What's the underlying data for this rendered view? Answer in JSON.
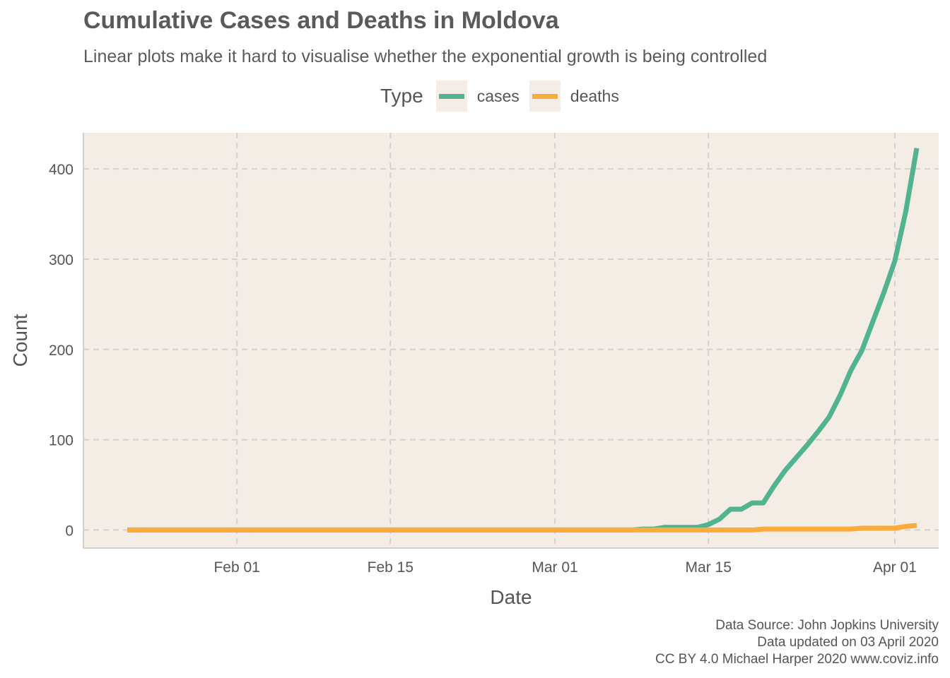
{
  "title": "Cumulative Cases and Deaths in Moldova",
  "subtitle": "Linear plots make it hard to visualise whether the exponential growth is being controlled",
  "legend": {
    "title": "Type",
    "items": [
      {
        "label": "cases",
        "color": "#52b391"
      },
      {
        "label": "deaths",
        "color": "#fbaa3c"
      }
    ]
  },
  "caption": {
    "line1": "Data Source: John Jopkins University",
    "line2": "Data updated on 03 April 2020",
    "line3": "CC BY 4.0 Michael Harper 2020 www.coviz.info"
  },
  "chart_data": {
    "type": "line",
    "title": "Cumulative Cases and Deaths in Moldova",
    "xlabel": "Date",
    "ylabel": "Count",
    "x_start": "2020-01-22",
    "x_end": "2020-04-01",
    "xlim": [
      "2020-01-18",
      "2020-04-05"
    ],
    "ylim": [
      -20,
      440
    ],
    "xticks": [
      {
        "date": "2020-02-01",
        "label": "Feb 01"
      },
      {
        "date": "2020-02-15",
        "label": "Feb 15"
      },
      {
        "date": "2020-03-01",
        "label": "Mar 01"
      },
      {
        "date": "2020-03-15",
        "label": "Mar 15"
      },
      {
        "date": "2020-04-01",
        "label": "Apr 01"
      }
    ],
    "yticks": [
      0,
      100,
      200,
      300,
      400
    ],
    "grid": true,
    "panel_color": "#f3ede6",
    "legend_position": "top",
    "series": [
      {
        "name": "cases",
        "color": "#52b391",
        "values": [
          0,
          0,
          0,
          0,
          0,
          0,
          0,
          0,
          0,
          0,
          0,
          0,
          0,
          0,
          0,
          0,
          0,
          0,
          0,
          0,
          0,
          0,
          0,
          0,
          0,
          0,
          0,
          0,
          0,
          0,
          0,
          0,
          0,
          0,
          0,
          0,
          0,
          0,
          0,
          0,
          0,
          0,
          0,
          0,
          0,
          0,
          0,
          1,
          1,
          3,
          3,
          3,
          3,
          6,
          12,
          23,
          23,
          30,
          30,
          49,
          66,
          80,
          94,
          109,
          125,
          149,
          177,
          199,
          231,
          263,
          298,
          353,
          423
        ]
      },
      {
        "name": "deaths",
        "color": "#fbaa3c",
        "values": [
          0,
          0,
          0,
          0,
          0,
          0,
          0,
          0,
          0,
          0,
          0,
          0,
          0,
          0,
          0,
          0,
          0,
          0,
          0,
          0,
          0,
          0,
          0,
          0,
          0,
          0,
          0,
          0,
          0,
          0,
          0,
          0,
          0,
          0,
          0,
          0,
          0,
          0,
          0,
          0,
          0,
          0,
          0,
          0,
          0,
          0,
          0,
          0,
          0,
          0,
          0,
          0,
          0,
          0,
          0,
          0,
          0,
          0,
          1,
          1,
          1,
          1,
          1,
          1,
          1,
          1,
          1,
          2,
          2,
          2,
          2,
          4,
          5
        ]
      }
    ]
  }
}
